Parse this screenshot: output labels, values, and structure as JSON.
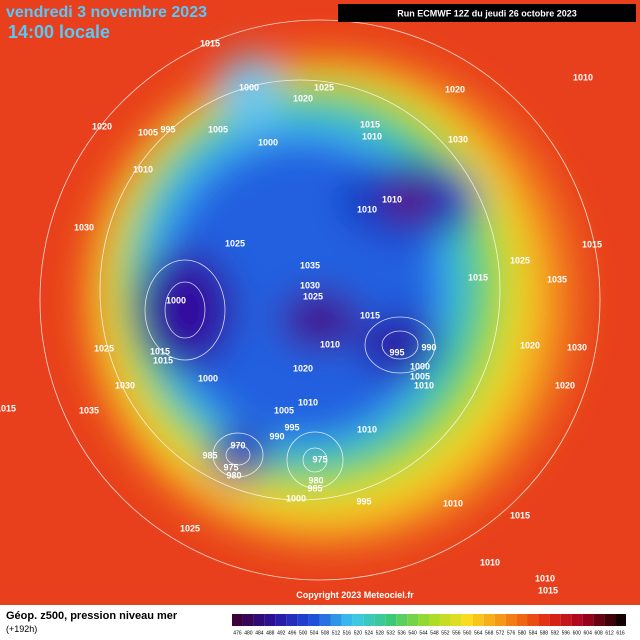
{
  "header": {
    "title": "vendredi 3 novembre 2023",
    "time": "14:00 locale",
    "run": "Run ECMWF 12Z du jeudi 26 octobre 2023"
  },
  "map": {
    "pressure_labels": [
      1015,
      1000,
      1020,
      1025,
      1020,
      1010,
      1020,
      1005,
      995,
      1005,
      1000,
      1015,
      1010,
      1030,
      1010,
      1010,
      1010,
      1030,
      1025,
      1035,
      1015,
      1025,
      1035,
      1015,
      1000,
      1030,
      1025,
      1015,
      1010,
      1025,
      1015,
      1015,
      995,
      990,
      1000,
      1005,
      1010,
      1020,
      1030,
      1000,
      1020,
      1030,
      1020,
      1035,
      1015,
      1010,
      1005,
      995,
      990,
      970,
      985,
      975,
      980,
      975,
      980,
      985,
      1000,
      1010,
      995,
      1010,
      1015,
      1025,
      1010,
      1010,
      1015
    ],
    "copyright": "Copyright 2023 Meteociel.fr"
  },
  "footer": {
    "caption": "Géop. z500, pression niveau mer",
    "lead": "(+192h)",
    "scale": [
      476,
      480,
      484,
      488,
      492,
      496,
      500,
      504,
      508,
      512,
      516,
      520,
      524,
      528,
      532,
      536,
      540,
      544,
      548,
      552,
      556,
      560,
      564,
      568,
      572,
      576,
      580,
      584,
      588,
      592,
      596,
      600,
      604,
      608,
      612,
      616
    ]
  }
}
